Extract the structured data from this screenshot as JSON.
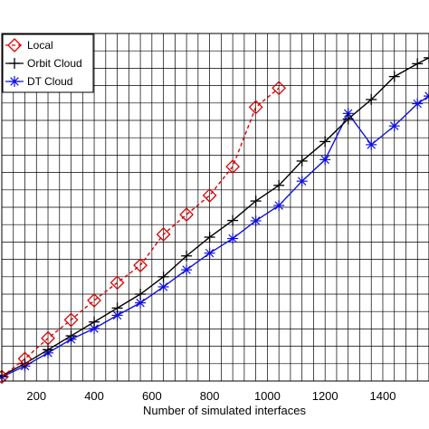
{
  "chart_data": {
    "type": "line",
    "title": "",
    "xlabel": "Number of simulated interfaces",
    "ylabel": "",
    "xlim": [
      80,
      1560
    ],
    "ylim": [
      0,
      100
    ],
    "x_ticks": [
      200,
      400,
      600,
      800,
      1000,
      1200,
      1400
    ],
    "grid": true,
    "legend_position": "top-left",
    "series": [
      {
        "name": "Local",
        "color": "#dd0000",
        "line_style": "dashed",
        "marker": "diamond",
        "x": [
          80,
          160,
          240,
          320,
          400,
          480,
          560,
          640,
          720,
          800,
          880,
          960,
          1040
        ],
        "y": [
          1.2,
          6.4,
          12.3,
          17.6,
          23.2,
          28.3,
          33.3,
          42.2,
          47.9,
          53.4,
          61.7,
          78.8,
          84.3
        ]
      },
      {
        "name": "Orbit Cloud",
        "color": "#000000",
        "line_style": "solid",
        "marker": "plus",
        "x": [
          80,
          160,
          240,
          320,
          400,
          480,
          560,
          640,
          720,
          800,
          880,
          960,
          1040,
          1120,
          1200,
          1280,
          1360,
          1440,
          1520,
          1560
        ],
        "y": [
          1.5,
          5.0,
          9.0,
          13.0,
          17.0,
          21.0,
          25.0,
          30.0,
          36.0,
          41.4,
          46.2,
          51.8,
          56.3,
          63.3,
          68.9,
          75.4,
          81.0,
          87.6,
          91.3,
          93.0
        ]
      },
      {
        "name": "DT Cloud",
        "color": "#1010dd",
        "line_style": "solid",
        "marker": "asterisk",
        "x": [
          80,
          160,
          240,
          320,
          400,
          480,
          560,
          640,
          720,
          800,
          880,
          960,
          1040,
          1120,
          1200,
          1280,
          1360,
          1440,
          1520,
          1560
        ],
        "y": [
          1.2,
          4.3,
          8.1,
          12.0,
          15.1,
          18.9,
          22.5,
          27.1,
          32.0,
          36.8,
          41.0,
          46.1,
          50.5,
          57.5,
          63.7,
          77.0,
          68.0,
          73.4,
          79.8,
          82.0
        ]
      }
    ]
  }
}
